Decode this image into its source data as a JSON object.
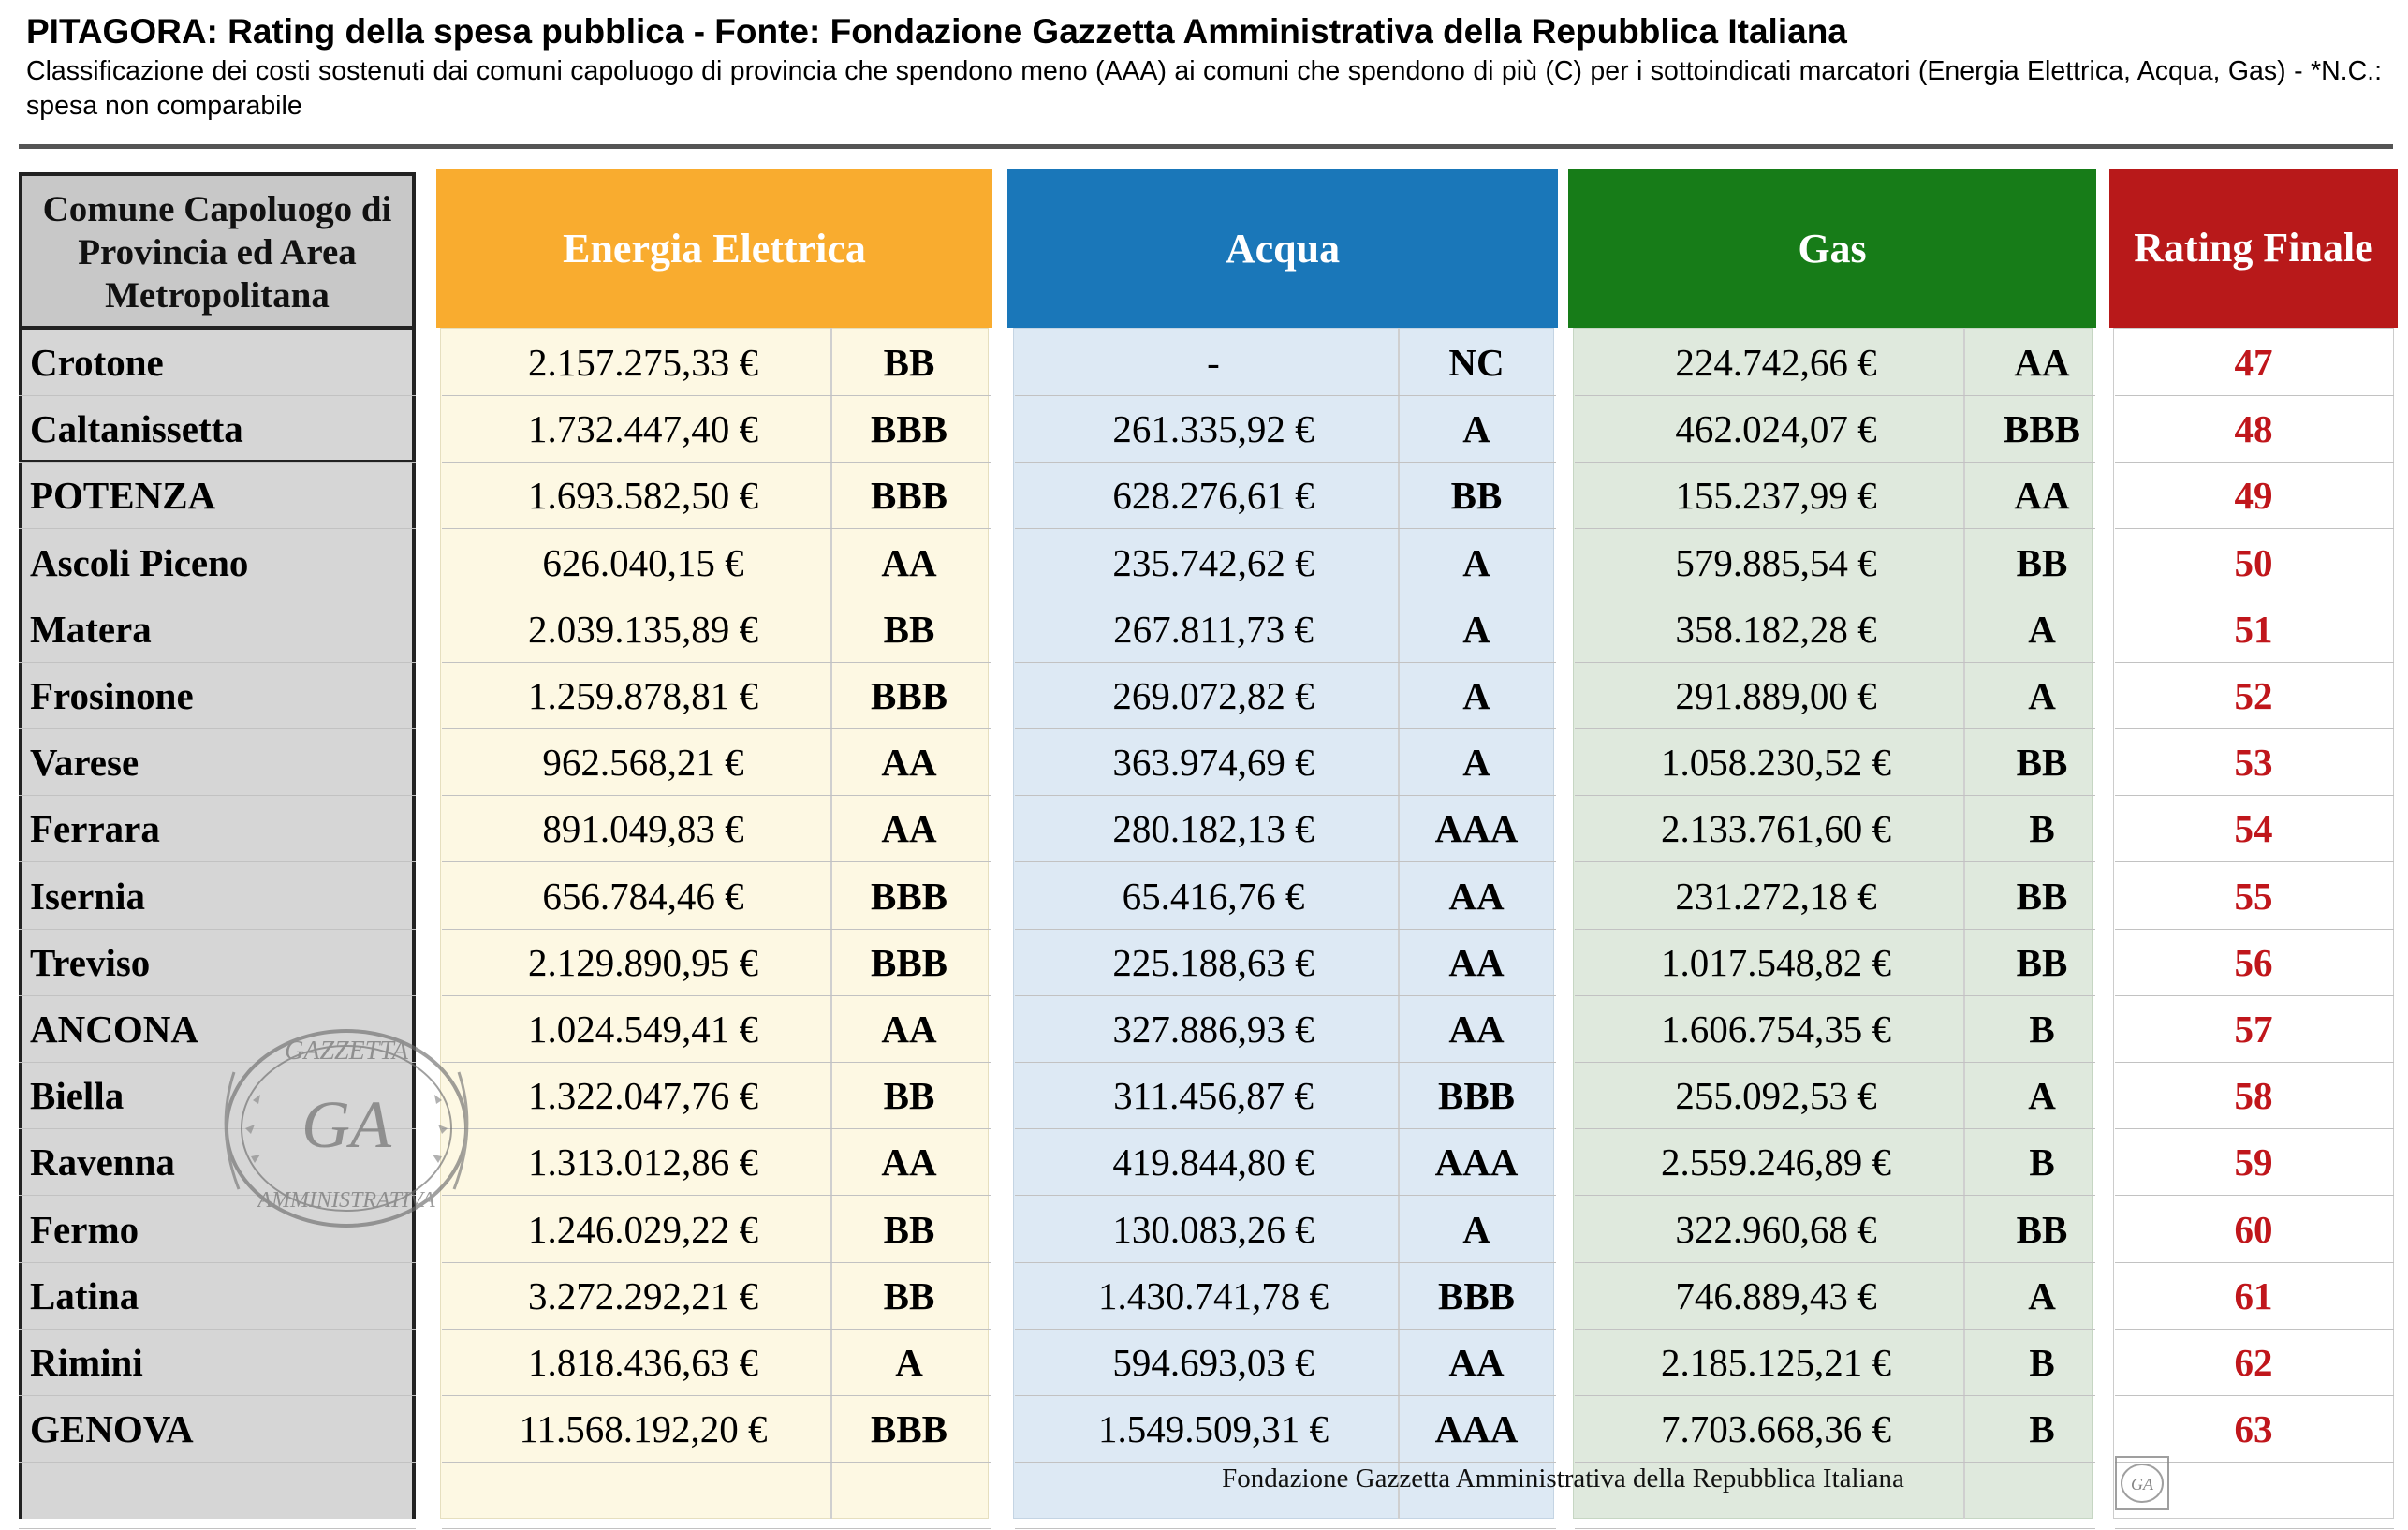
{
  "header": {
    "title": "PITAGORA: Rating della spesa pubblica - Fonte: Fondazione Gazzetta Amministrativa della Repubblica Italiana",
    "subtitle": "Classificazione dei costi sostenuti dai comuni capoluogo di provincia che spendono meno (AAA) ai comuni che spendono di più (C) per i sottoindicati marcatori (Energia Elettrica, Acqua, Gas) - *N.C.: spesa non comparabile"
  },
  "columns": {
    "comune": "Comune Capoluogo di Provincia ed Area Metropolitana",
    "energia": "Energia Elettrica",
    "acqua": "Acqua",
    "gas": "Gas",
    "rating": "Rating Finale"
  },
  "colors": {
    "energia": "#f9ac2f",
    "acqua": "#1a77b9",
    "gas": "#177c18",
    "rating": "#b8191a"
  },
  "rows": [
    {
      "comune": "Crotone",
      "energia": "2.157.275,33 €",
      "energia_rating": "BB",
      "acqua": "-",
      "acqua_rating": "NC",
      "gas": "224.742,66 €",
      "gas_rating": "AA",
      "finale": "47"
    },
    {
      "comune": "Caltanissetta",
      "energia": "1.732.447,40 €",
      "energia_rating": "BBB",
      "acqua": "261.335,92 €",
      "acqua_rating": "A",
      "gas": "462.024,07 €",
      "gas_rating": "BBB",
      "finale": "48"
    },
    {
      "comune": "POTENZA",
      "energia": "1.693.582,50 €",
      "energia_rating": "BBB",
      "acqua": "628.276,61 €",
      "acqua_rating": "BB",
      "gas": "155.237,99 €",
      "gas_rating": "AA",
      "finale": "49"
    },
    {
      "comune": "Ascoli Piceno",
      "energia": "626.040,15 €",
      "energia_rating": "AA",
      "acqua": "235.742,62 €",
      "acqua_rating": "A",
      "gas": "579.885,54 €",
      "gas_rating": "BB",
      "finale": "50"
    },
    {
      "comune": "Matera",
      "energia": "2.039.135,89 €",
      "energia_rating": "BB",
      "acqua": "267.811,73 €",
      "acqua_rating": "A",
      "gas": "358.182,28 €",
      "gas_rating": "A",
      "finale": "51"
    },
    {
      "comune": "Frosinone",
      "energia": "1.259.878,81 €",
      "energia_rating": "BBB",
      "acqua": "269.072,82 €",
      "acqua_rating": "A",
      "gas": "291.889,00 €",
      "gas_rating": "A",
      "finale": "52"
    },
    {
      "comune": "Varese",
      "energia": "962.568,21 €",
      "energia_rating": "AA",
      "acqua": "363.974,69 €",
      "acqua_rating": "A",
      "gas": "1.058.230,52 €",
      "gas_rating": "BB",
      "finale": "53"
    },
    {
      "comune": "Ferrara",
      "energia": "891.049,83 €",
      "energia_rating": "AA",
      "acqua": "280.182,13 €",
      "acqua_rating": "AAA",
      "gas": "2.133.761,60 €",
      "gas_rating": "B",
      "finale": "54"
    },
    {
      "comune": "Isernia",
      "energia": "656.784,46 €",
      "energia_rating": "BBB",
      "acqua": "65.416,76 €",
      "acqua_rating": "AA",
      "gas": "231.272,18 €",
      "gas_rating": "BB",
      "finale": "55"
    },
    {
      "comune": "Treviso",
      "energia": "2.129.890,95 €",
      "energia_rating": "BBB",
      "acqua": "225.188,63 €",
      "acqua_rating": "AA",
      "gas": "1.017.548,82 €",
      "gas_rating": "BB",
      "finale": "56"
    },
    {
      "comune": "ANCONA",
      "energia": "1.024.549,41 €",
      "energia_rating": "AA",
      "acqua": "327.886,93 €",
      "acqua_rating": "AA",
      "gas": "1.606.754,35 €",
      "gas_rating": "B",
      "finale": "57"
    },
    {
      "comune": "Biella",
      "energia": "1.322.047,76 €",
      "energia_rating": "BB",
      "acqua": "311.456,87 €",
      "acqua_rating": "BBB",
      "gas": "255.092,53 €",
      "gas_rating": "A",
      "finale": "58"
    },
    {
      "comune": "Ravenna",
      "energia": "1.313.012,86 €",
      "energia_rating": "AA",
      "acqua": "419.844,80 €",
      "acqua_rating": "AAA",
      "gas": "2.559.246,89 €",
      "gas_rating": "B",
      "finale": "59"
    },
    {
      "comune": "Fermo",
      "energia": "1.246.029,22 €",
      "energia_rating": "BB",
      "acqua": "130.083,26 €",
      "acqua_rating": "A",
      "gas": "322.960,68 €",
      "gas_rating": "BB",
      "finale": "60"
    },
    {
      "comune": "Latina",
      "energia": "3.272.292,21 €",
      "energia_rating": "BB",
      "acqua": "1.430.741,78 €",
      "acqua_rating": "BBB",
      "gas": "746.889,43 €",
      "gas_rating": "A",
      "finale": "61"
    },
    {
      "comune": "Rimini",
      "energia": "1.818.436,63 €",
      "energia_rating": "A",
      "acqua": "594.693,03 €",
      "acqua_rating": "AA",
      "gas": "2.185.125,21 €",
      "gas_rating": "B",
      "finale": "62"
    },
    {
      "comune": "GENOVA",
      "energia": "11.568.192,20 €",
      "energia_rating": "BBB",
      "acqua": "1.549.509,31 €",
      "acqua_rating": "AAA",
      "gas": "7.703.668,36 €",
      "gas_rating": "B",
      "finale": "63"
    }
  ],
  "footer": "Fondazione Gazzetta Amministrativa della Repubblica Italiana",
  "seal": {
    "top_text": "GAZZETTA",
    "monogram": "GA",
    "bottom_text": "AMMINISTRATIVA"
  }
}
